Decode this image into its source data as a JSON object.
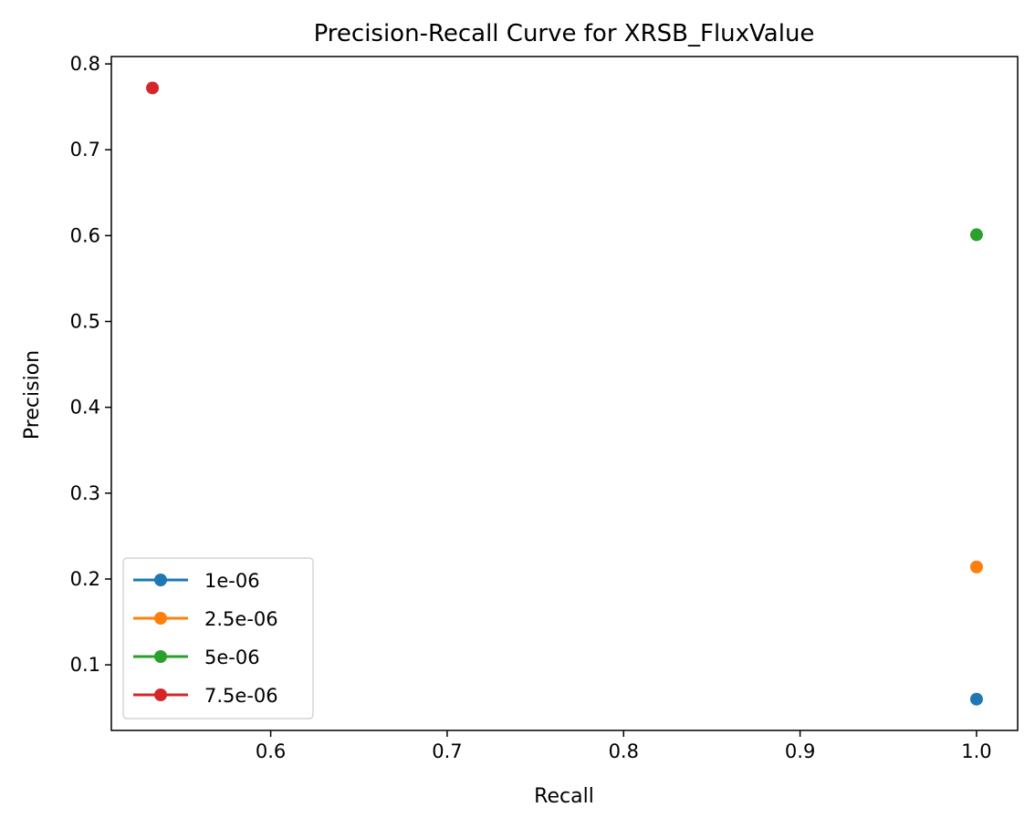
{
  "chart_data": {
    "type": "scatter",
    "title": "Precision-Recall Curve for XRSB_FluxValue",
    "xlabel": "Recall",
    "ylabel": "Precision",
    "xlim": [
      0.5097,
      1.0233
    ],
    "ylim": [
      0.0236,
      0.8086
    ],
    "xticks": [
      0.6,
      0.7,
      0.8,
      0.9,
      1.0
    ],
    "xtick_labels": [
      "0.6",
      "0.7",
      "0.8",
      "0.9",
      "1.0"
    ],
    "yticks": [
      0.1,
      0.2,
      0.3,
      0.4,
      0.5,
      0.6,
      0.7,
      0.8
    ],
    "ytick_labels": [
      "0.1",
      "0.2",
      "0.3",
      "0.4",
      "0.5",
      "0.6",
      "0.7",
      "0.8"
    ],
    "grid": false,
    "legend_position": "lower-left",
    "series": [
      {
        "name": "1e-06",
        "color": "#1f77b4",
        "x": [
          1.0
        ],
        "y": [
          0.06
        ]
      },
      {
        "name": "2.5e-06",
        "color": "#ff7f0e",
        "x": [
          1.0
        ],
        "y": [
          0.214
        ]
      },
      {
        "name": "5e-06",
        "color": "#2ca02c",
        "x": [
          1.0
        ],
        "y": [
          0.601
        ]
      },
      {
        "name": "7.5e-06",
        "color": "#d62728",
        "x": [
          0.533
        ],
        "y": [
          0.772
        ]
      }
    ]
  }
}
